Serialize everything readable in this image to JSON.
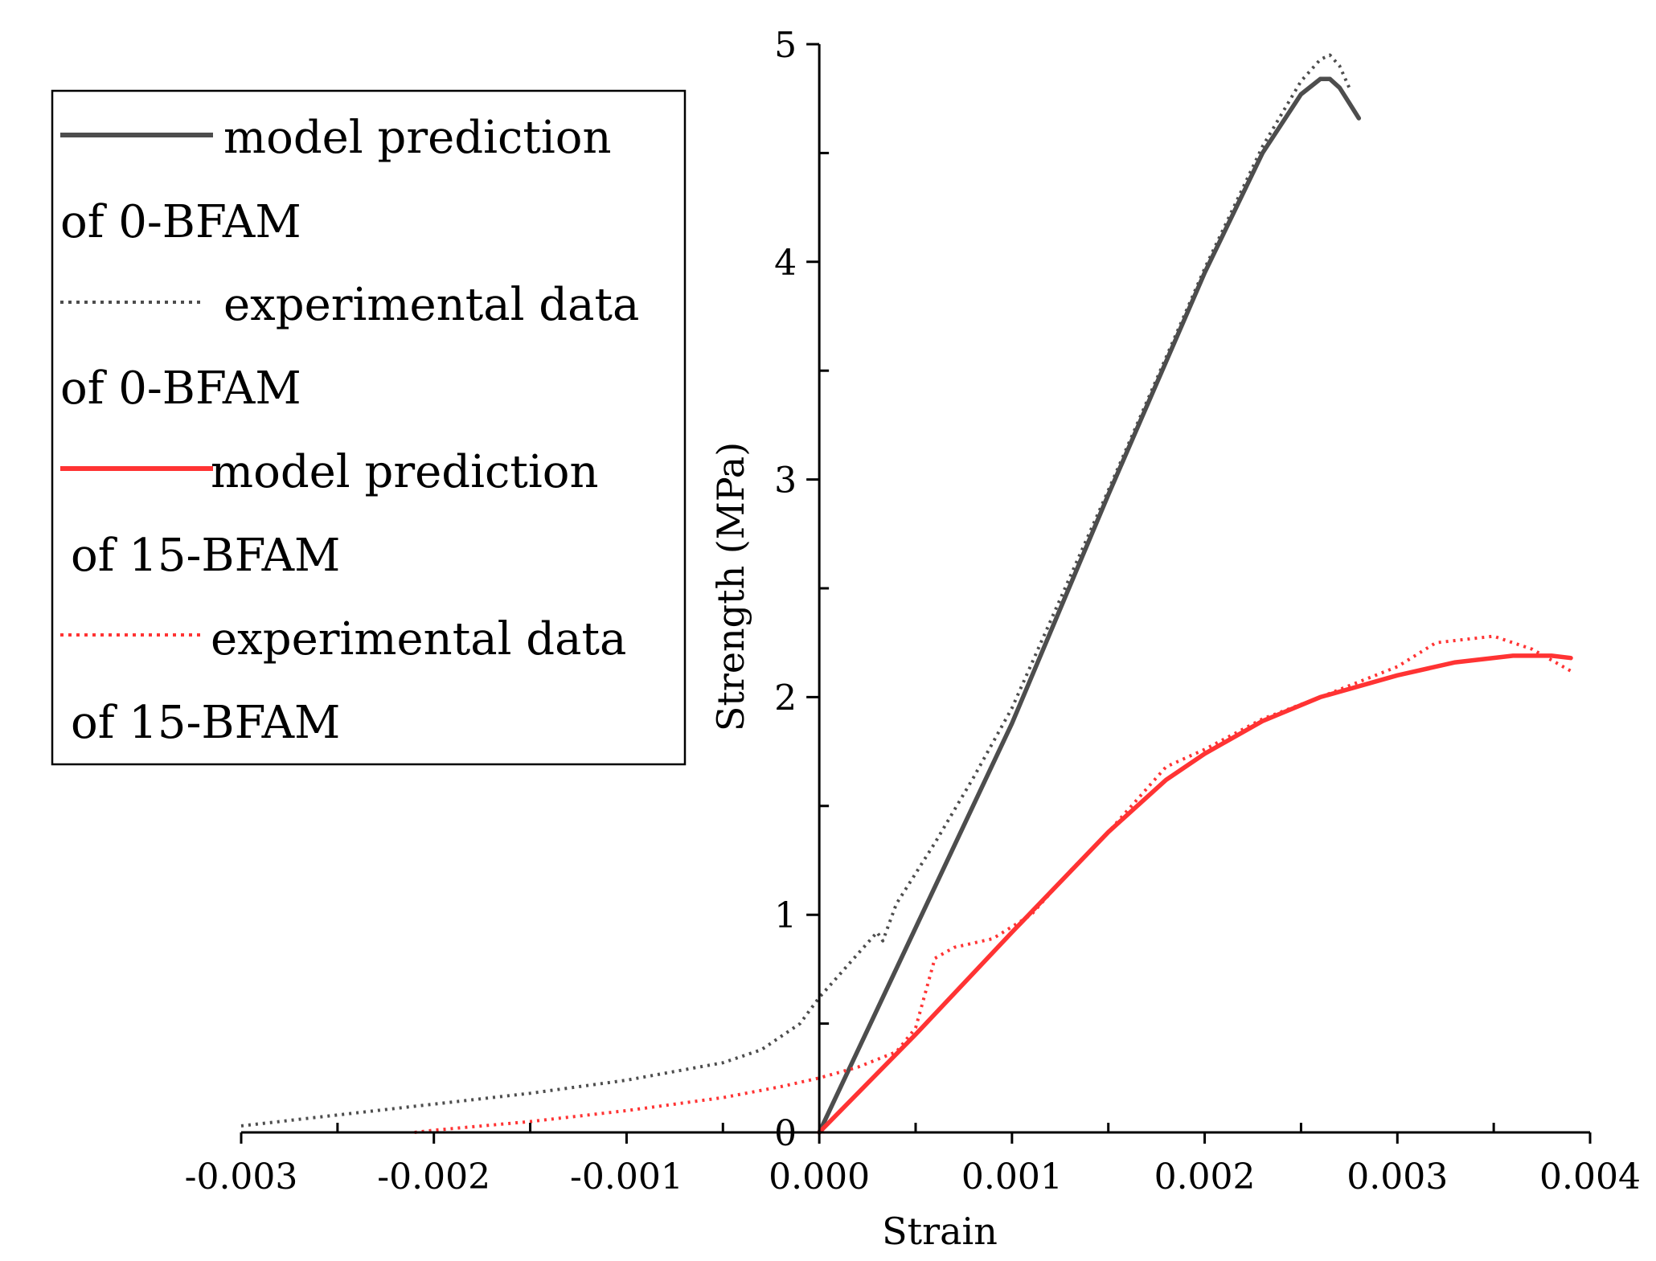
{
  "chart_data": {
    "type": "line",
    "title": "",
    "xlabel": "Strain",
    "ylabel": "Strength (MPa)",
    "xlim": [
      -0.003,
      0.004
    ],
    "ylim": [
      0,
      5
    ],
    "x_ticks": [
      "-0.003",
      "-0.002",
      "-0.001",
      "0.000",
      "0.001",
      "0.002",
      "0.003",
      "0.004"
    ],
    "y_ticks": [
      "0",
      "1",
      "2",
      "3",
      "4",
      "5"
    ],
    "x_tick_values": [
      -0.003,
      -0.002,
      -0.001,
      0.0,
      0.001,
      0.002,
      0.003,
      0.004
    ],
    "y_tick_values": [
      0,
      1,
      2,
      3,
      4,
      5
    ],
    "legend_placement": "top-left",
    "legend": [
      {
        "line1": "model prediction",
        "line2": "of 0-BFAM"
      },
      {
        "line1": "experimental data",
        "line2": "of 0-BFAM"
      },
      {
        "line1": "model prediction",
        "line2": "of 15-BFAM"
      },
      {
        "line1": "experimental data",
        "line2": "of 15-BFAM"
      }
    ],
    "series": [
      {
        "name": "model prediction of 0-BFAM",
        "color": "#4d4d4d",
        "style": "solid",
        "x": [
          0.0,
          0.0005,
          0.001,
          0.0015,
          0.002,
          0.0023,
          0.0025,
          0.0026,
          0.00265,
          0.0027,
          0.00275,
          0.0028
        ],
        "y": [
          0.0,
          0.94,
          1.88,
          2.93,
          3.95,
          4.5,
          4.77,
          4.84,
          4.84,
          4.8,
          4.73,
          4.66
        ]
      },
      {
        "name": "experimental data of 0-BFAM",
        "color": "#4d4d4d",
        "style": "dotted",
        "x": [
          -0.003,
          -0.0025,
          -0.002,
          -0.0015,
          -0.001,
          -0.0005,
          -0.0003,
          -0.0001,
          0.0,
          0.0001,
          0.0002,
          0.0003,
          0.00033,
          0.0004,
          0.0006,
          0.0008,
          0.001,
          0.0015,
          0.002,
          0.0023,
          0.0025,
          0.0026,
          0.00265,
          0.0027,
          0.00275
        ],
        "y": [
          0.03,
          0.08,
          0.13,
          0.18,
          0.24,
          0.32,
          0.38,
          0.5,
          0.62,
          0.72,
          0.82,
          0.92,
          0.88,
          1.05,
          1.33,
          1.63,
          1.95,
          2.95,
          3.97,
          4.53,
          4.83,
          4.93,
          4.95,
          4.9,
          4.8
        ]
      },
      {
        "name": "model prediction of 15-BFAM",
        "color": "#ff3333",
        "style": "solid",
        "x": [
          0.0,
          0.0005,
          0.001,
          0.0015,
          0.0018,
          0.002,
          0.0023,
          0.0026,
          0.003,
          0.0033,
          0.0036,
          0.0038,
          0.0039
        ],
        "y": [
          0.0,
          0.45,
          0.92,
          1.38,
          1.62,
          1.74,
          1.89,
          2.0,
          2.1,
          2.16,
          2.19,
          2.19,
          2.18
        ]
      },
      {
        "name": "experimental data of 15-BFAM",
        "color": "#ff3333",
        "style": "dotted",
        "x": [
          -0.0021,
          -0.002,
          -0.0015,
          -0.001,
          -0.0005,
          -0.0002,
          0.0,
          0.0002,
          0.0004,
          0.0005,
          0.0006,
          0.0007,
          0.0009,
          0.0011,
          0.0013,
          0.0015,
          0.0018,
          0.002,
          0.0023,
          0.0026,
          0.003,
          0.0032,
          0.0035,
          0.0037,
          0.0039
        ],
        "y": [
          0.0,
          0.01,
          0.05,
          0.1,
          0.16,
          0.21,
          0.25,
          0.3,
          0.37,
          0.48,
          0.8,
          0.85,
          0.89,
          1.0,
          1.2,
          1.38,
          1.68,
          1.76,
          1.9,
          2.0,
          2.14,
          2.25,
          2.28,
          2.22,
          2.12
        ]
      }
    ]
  }
}
